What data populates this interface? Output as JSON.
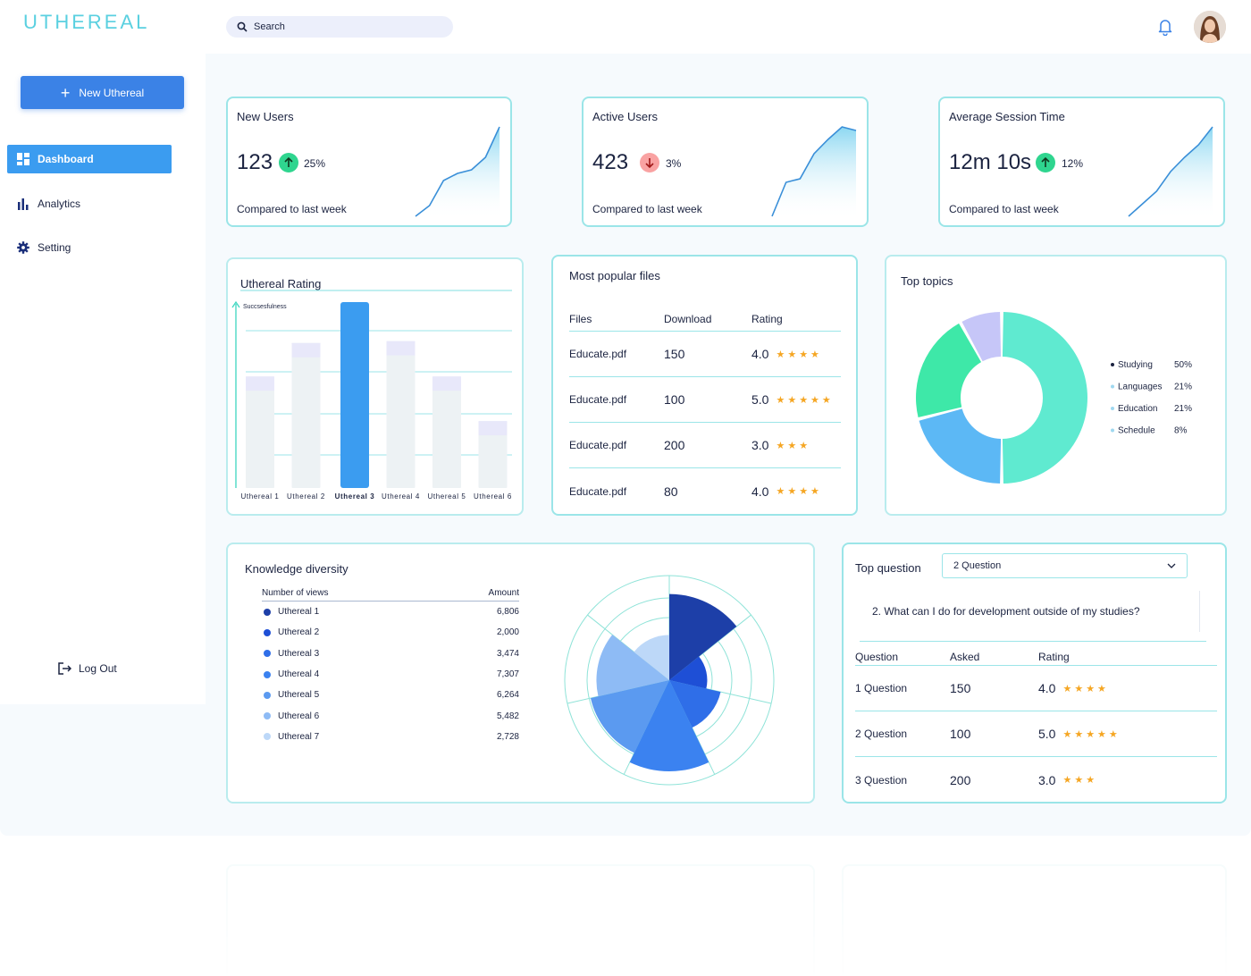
{
  "app": {
    "logo": "UTHEREAL"
  },
  "header": {
    "search_placeholder": "Search",
    "icons": {
      "search": "search-icon",
      "notifications": "bell-icon",
      "user": "avatar"
    }
  },
  "sidebar": {
    "new_button": "New Uthereal",
    "items": [
      {
        "label": "Dashboard",
        "icon": "grid-icon",
        "active": true
      },
      {
        "label": "Analytics",
        "icon": "bar-chart-icon",
        "active": false
      },
      {
        "label": "Setting",
        "icon": "gear-icon",
        "active": false
      }
    ],
    "logout": "Log Out"
  },
  "stats": [
    {
      "title": "New Users",
      "value": "123",
      "direction": "up",
      "change": "25%",
      "caption": "Compared to last week"
    },
    {
      "title": "Active Users",
      "value": "423",
      "direction": "down",
      "change": "3%",
      "caption": "Compared to last week"
    },
    {
      "title": "Average Session Time",
      "value": "12m 10s",
      "direction": "up",
      "change": "12%",
      "caption": "Compared to last week"
    }
  ],
  "rating": {
    "title": "Uthereal Rating",
    "ylabel": "Succsesfulness"
  },
  "files": {
    "title": "Most popular files",
    "headers": {
      "file": "Files",
      "download": "Download",
      "rating": "Rating"
    },
    "rows": [
      {
        "file": "Educate.pdf",
        "download": "150",
        "rating": "4.0",
        "stars": "★★★★"
      },
      {
        "file": "Educate.pdf",
        "download": "100",
        "rating": "5.0",
        "stars": "★★★★★"
      },
      {
        "file": "Educate.pdf",
        "download": "200",
        "rating": "3.0",
        "stars": "★★★"
      },
      {
        "file": "Educate.pdf",
        "download": "80",
        "rating": "4.0",
        "stars": "★★★★"
      }
    ]
  },
  "topics": {
    "title": "Top topics"
  },
  "knowledge": {
    "title": "Knowledge diversity",
    "headers": {
      "name": "Number of views",
      "amount": "Amount"
    },
    "rows": [
      {
        "name": "Uthereal 1",
        "amount": "6,806",
        "color": "#1d3fa8"
      },
      {
        "name": "Uthereal 2",
        "amount": "2,000",
        "color": "#1e4fd6"
      },
      {
        "name": "Uthereal 3",
        "amount": "3,474",
        "color": "#2f6ee8"
      },
      {
        "name": "Uthereal 4",
        "amount": "7,307",
        "color": "#3b82f0"
      },
      {
        "name": "Uthereal 5",
        "amount": "6,264",
        "color": "#5b9af0"
      },
      {
        "name": "Uthereal 6",
        "amount": "5,482",
        "color": "#8ebbf5"
      },
      {
        "name": "Uthereal 7",
        "amount": "2,728",
        "color": "#bdd8f8"
      }
    ]
  },
  "question": {
    "title": "Top question",
    "selected": "2 Question",
    "text": "2. What can I do for development outside of my studies?",
    "headers": {
      "question": "Question",
      "asked": "Asked",
      "rating": "Rating"
    },
    "rows": [
      {
        "question": "1 Question",
        "asked": "150",
        "rating": "4.0",
        "stars": "★★★★"
      },
      {
        "question": "2 Question",
        "asked": "100",
        "rating": "5.0",
        "stars": "★★★★★"
      },
      {
        "question": "3 Question",
        "asked": "200",
        "rating": "3.0",
        "stars": "★★★"
      }
    ]
  },
  "chart_data": [
    {
      "type": "bar",
      "title": "Uthereal Rating",
      "ylabel": "Succsesfulness",
      "categories": [
        "Uthereal 1",
        "Uthereal 2",
        "Uthereal 3",
        "Uthereal 4",
        "Uthereal 5",
        "Uthereal 6"
      ],
      "values": [
        0.6,
        0.78,
        1.0,
        0.79,
        0.6,
        0.36
      ],
      "highlight": "Uthereal 3",
      "ylim": [
        0,
        1
      ]
    },
    {
      "type": "pie",
      "title": "Top topics",
      "legend_position": "right",
      "slices": [
        {
          "label": "Studying",
          "value": 50,
          "display": "50%",
          "color": "#5fead0"
        },
        {
          "label": "Languages",
          "value": 21,
          "display": "21%",
          "color": "#5cb8f5"
        },
        {
          "label": "Education",
          "value": 21,
          "display": "21%",
          "color": "#3ee8a8"
        },
        {
          "label": "Schedule",
          "value": 8,
          "display": "8%",
          "color": "#c6c6f8"
        }
      ]
    },
    {
      "type": "polar-area",
      "title": "Knowledge diversity",
      "categories": [
        "Uthereal 1",
        "Uthereal 2",
        "Uthereal 3",
        "Uthereal 4",
        "Uthereal 5",
        "Uthereal 6",
        "Uthereal 7"
      ],
      "values": [
        6806,
        2000,
        3474,
        7307,
        6264,
        5482,
        2728
      ]
    },
    {
      "type": "area",
      "title": "New Users",
      "values": [
        0,
        12,
        40,
        48,
        52,
        66,
        100
      ]
    },
    {
      "type": "area",
      "title": "Active Users",
      "values": [
        0,
        38,
        42,
        70,
        86,
        100,
        96
      ]
    },
    {
      "type": "area",
      "title": "Average Session Time",
      "values": [
        0,
        14,
        28,
        50,
        66,
        80,
        100
      ]
    }
  ]
}
